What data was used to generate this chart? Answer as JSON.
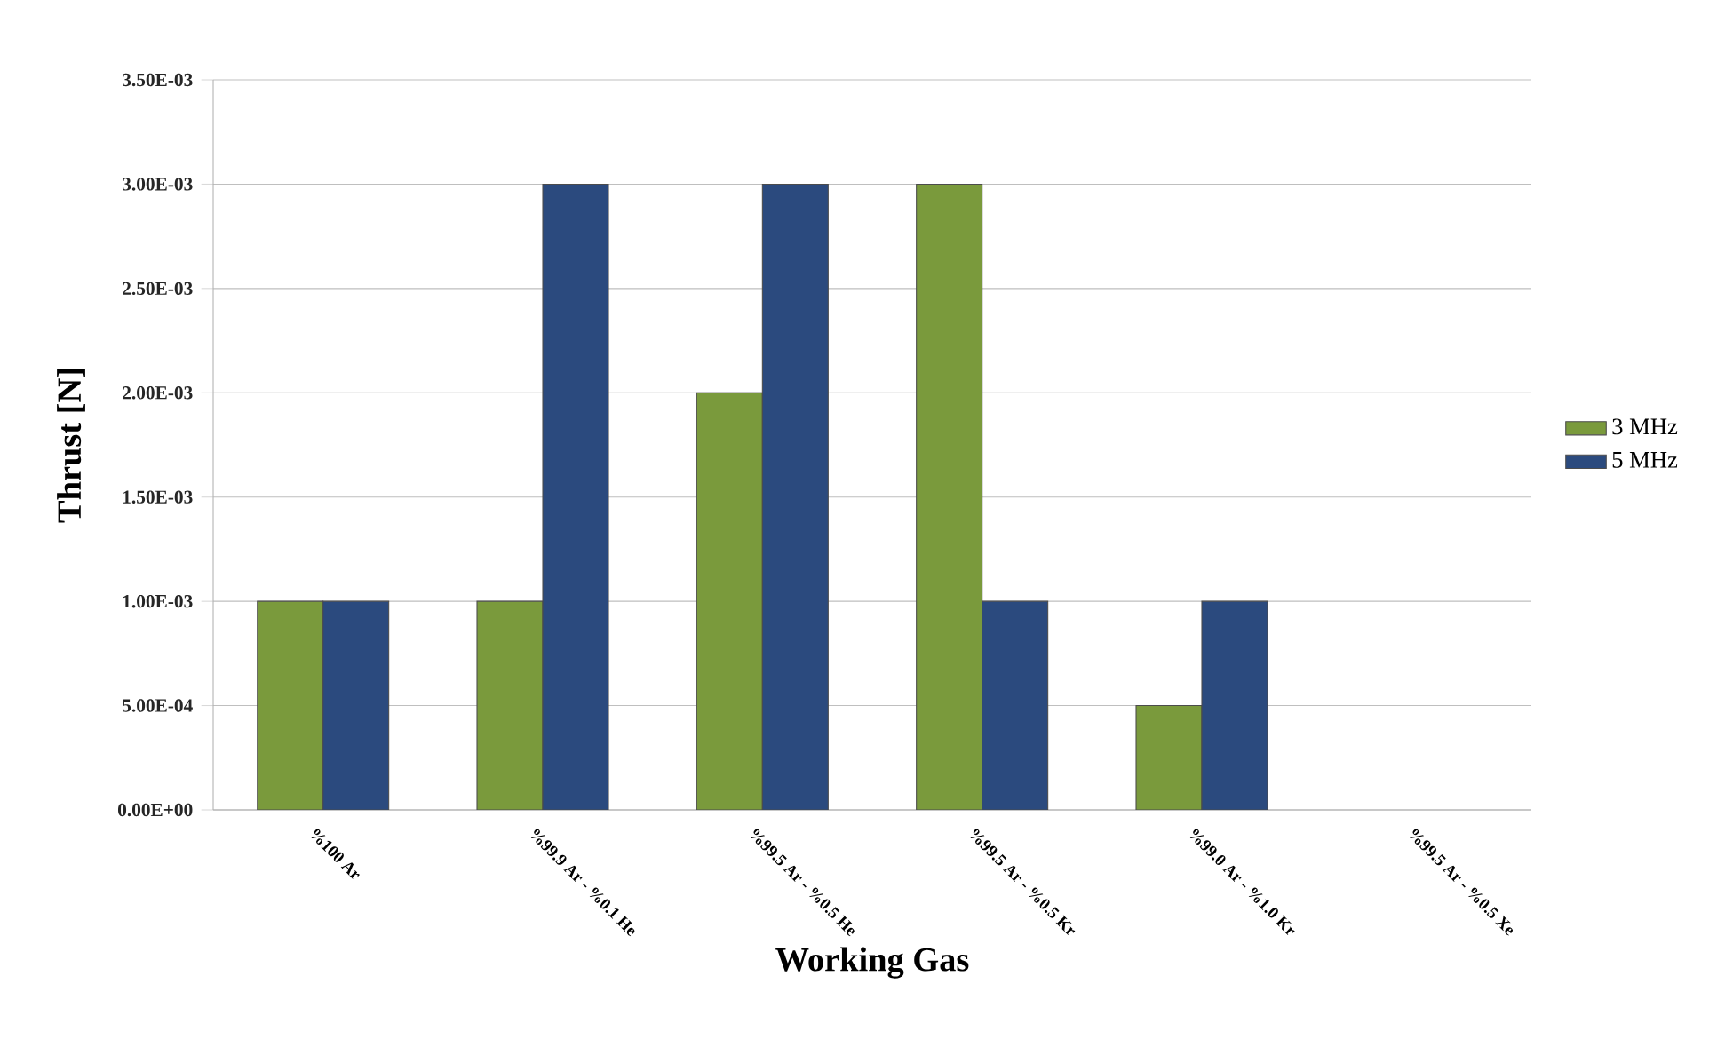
{
  "chart_data": {
    "type": "bar",
    "xlabel": "Working Gas",
    "ylabel": "Thrust [N]",
    "categories": [
      "%100 Ar",
      "%99.9 Ar - %0.1 He",
      "%99.5 Ar - %0.5 He",
      "%99.5 Ar - %0.5 Kr",
      "%99.0 Ar - %1.0 Kr",
      "%99.5 Ar - %0.5 Xe"
    ],
    "series": [
      {
        "name": "3 MHz",
        "color": "#7a9a3c",
        "values": [
          0.001,
          0.001,
          0.002,
          0.003,
          0.0005,
          null
        ]
      },
      {
        "name": "5 MHz",
        "color": "#2b4a7e",
        "values": [
          0.001,
          0.003,
          0.003,
          0.001,
          0.001,
          null
        ]
      }
    ],
    "ylim": [
      0,
      0.0035
    ],
    "yticks": [
      {
        "value": 0,
        "label": "0.00E+00"
      },
      {
        "value": 0.0005,
        "label": "5.00E-04"
      },
      {
        "value": 0.001,
        "label": "1.00E-03"
      },
      {
        "value": 0.0015,
        "label": "1.50E-03"
      },
      {
        "value": 0.002,
        "label": "2.00E-03"
      },
      {
        "value": 0.0025,
        "label": "2.50E-03"
      },
      {
        "value": 0.003,
        "label": "3.00E-03"
      },
      {
        "value": 0.0035,
        "label": "3.50E-03"
      }
    ],
    "grid": "y",
    "legend": "right"
  }
}
